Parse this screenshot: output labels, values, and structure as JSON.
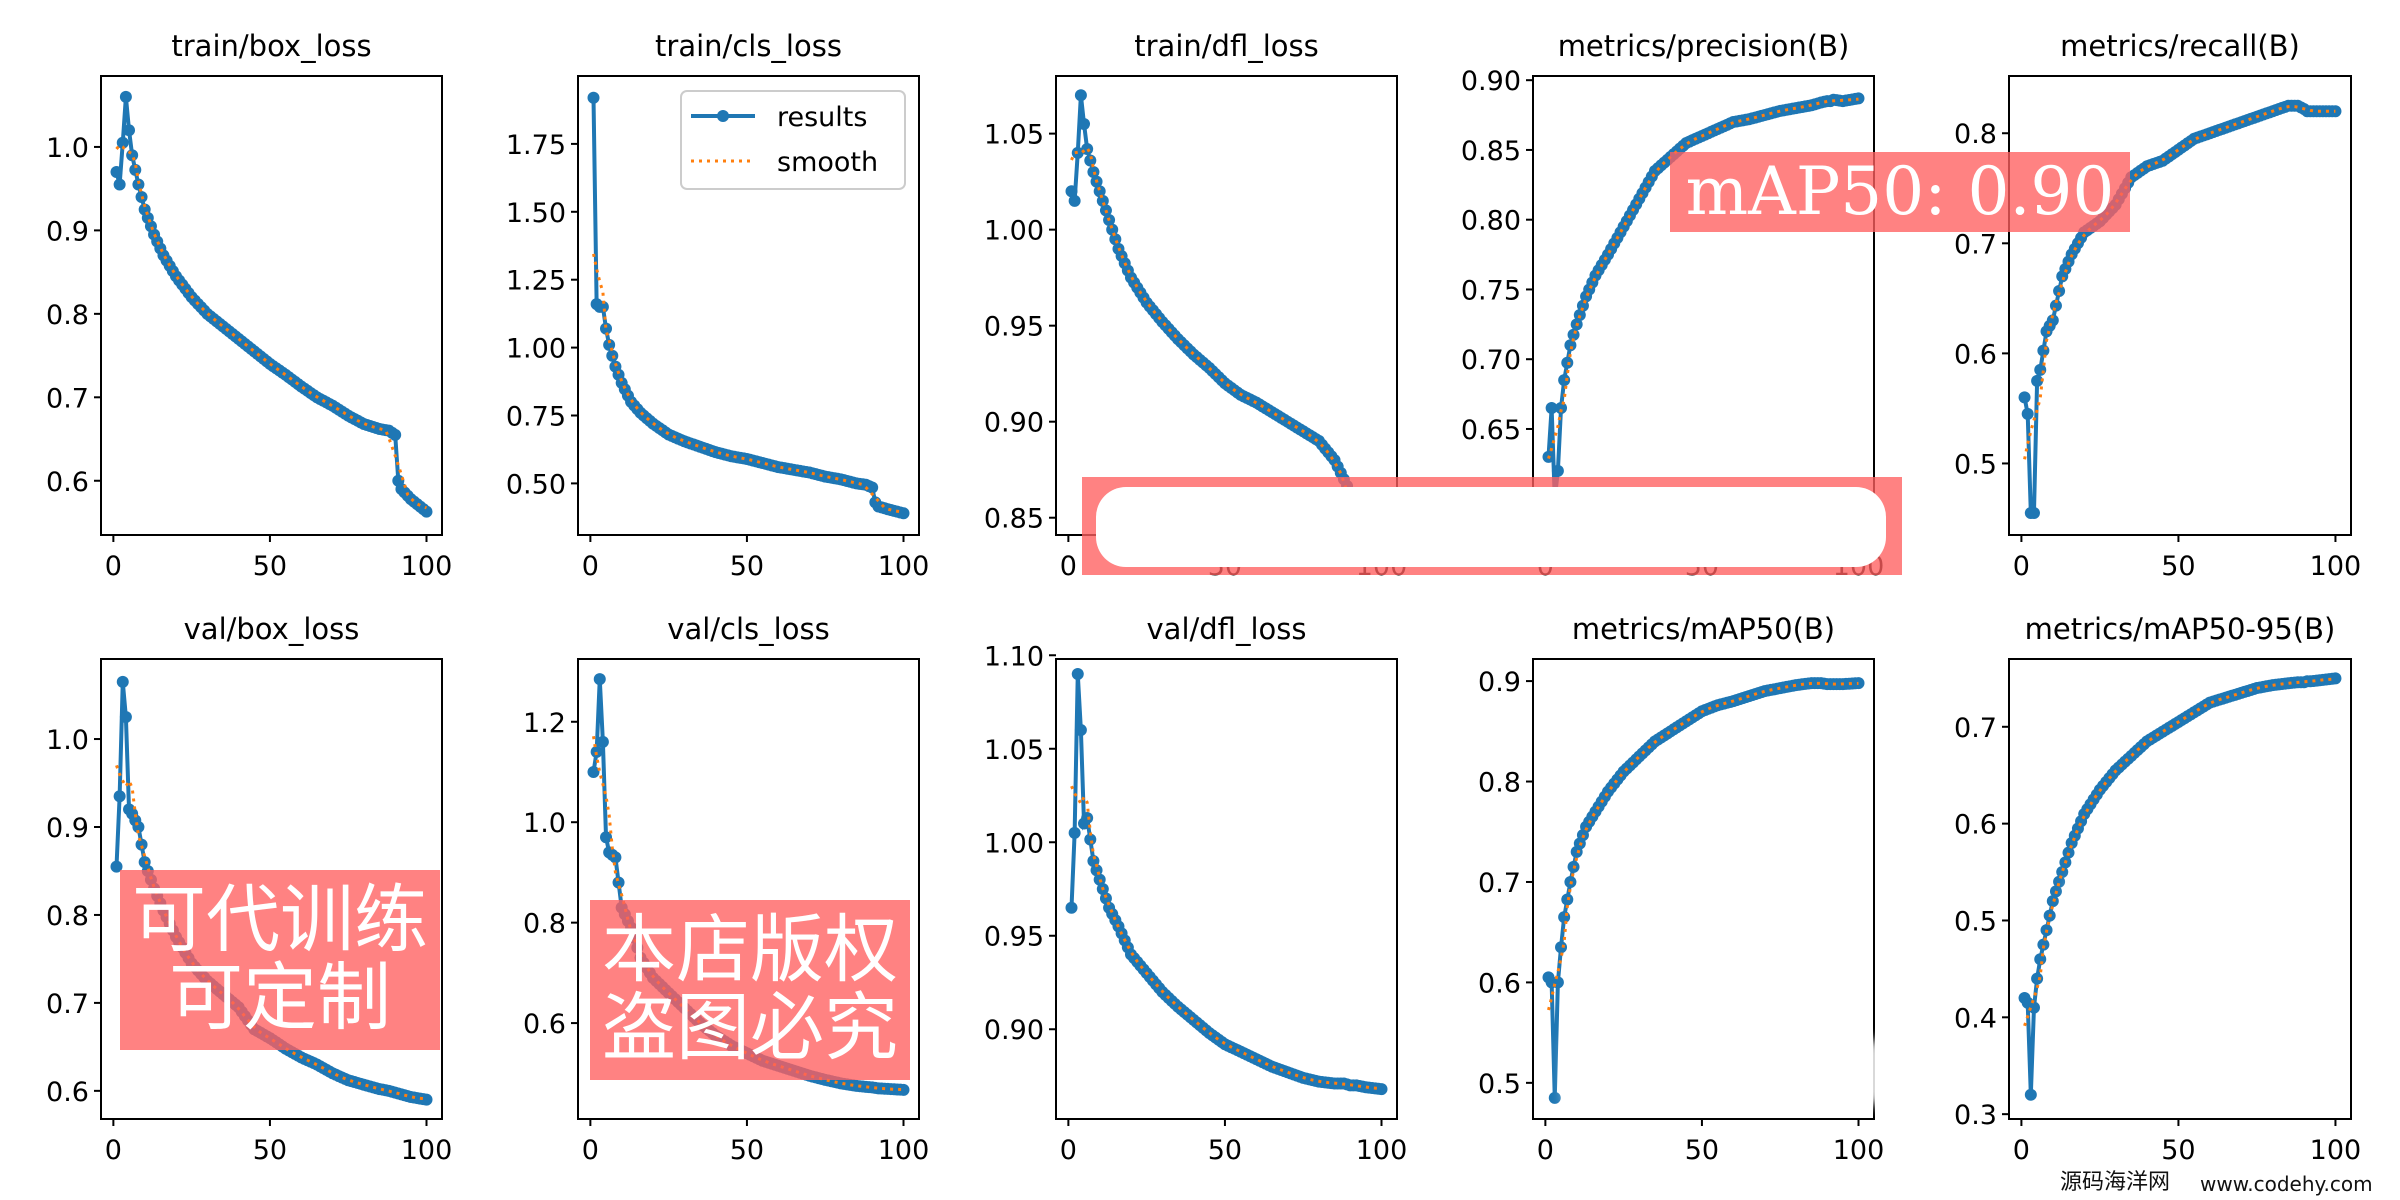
{
  "chart_data": [
    {
      "type": "line",
      "title": "train/box_loss",
      "xlim": [
        -3.95,
        104.95
      ],
      "ylim": [
        0.535,
        1.085
      ],
      "xticks": [
        "0",
        "50",
        "100"
      ],
      "yticks": [
        "0.6",
        "0.7",
        "0.8",
        "0.9",
        "1.0"
      ],
      "x": [
        1,
        2,
        3,
        4,
        5,
        6,
        8,
        10,
        13,
        16,
        20,
        25,
        30,
        35,
        40,
        45,
        50,
        55,
        60,
        65,
        70,
        75,
        80,
        85,
        88,
        90,
        91,
        92,
        95,
        100
      ],
      "results": [
        0.97,
        0.955,
        1.005,
        1.06,
        1.02,
        0.99,
        0.955,
        0.925,
        0.895,
        0.87,
        0.845,
        0.82,
        0.8,
        0.785,
        0.77,
        0.755,
        0.74,
        0.727,
        0.713,
        0.7,
        0.69,
        0.678,
        0.668,
        0.662,
        0.66,
        0.655,
        0.6,
        0.59,
        0.578,
        0.563
      ]
    },
    {
      "type": "line",
      "title": "train/cls_loss",
      "xlim": [
        -3.95,
        104.95
      ],
      "ylim": [
        0.31,
        2.0
      ],
      "xticks": [
        "0",
        "50",
        "100"
      ],
      "yticks": [
        "0.50",
        "0.75",
        "1.00",
        "1.25",
        "1.50",
        "1.75"
      ],
      "x": [
        1,
        2,
        3,
        4,
        5,
        6,
        8,
        10,
        13,
        16,
        20,
        25,
        30,
        35,
        40,
        45,
        50,
        55,
        60,
        65,
        70,
        75,
        80,
        85,
        88,
        90,
        91,
        92,
        95,
        100
      ],
      "results": [
        1.92,
        1.16,
        1.15,
        1.15,
        1.07,
        1.01,
        0.93,
        0.87,
        0.8,
        0.76,
        0.72,
        0.68,
        0.655,
        0.635,
        0.615,
        0.6,
        0.59,
        0.575,
        0.56,
        0.55,
        0.54,
        0.525,
        0.515,
        0.5,
        0.495,
        0.485,
        0.43,
        0.415,
        0.405,
        0.39
      ],
      "legend": {
        "placement": "top-right",
        "entries": [
          "results",
          "smooth"
        ]
      }
    },
    {
      "type": "line",
      "title": "train/dfl_loss",
      "xlim": [
        -3.95,
        104.95
      ],
      "ylim": [
        0.841,
        1.08
      ],
      "xticks": [
        "0",
        "50",
        "100"
      ],
      "yticks": [
        "0.85",
        "0.90",
        "0.95",
        "1.00",
        "1.05"
      ],
      "x": [
        1,
        2,
        3,
        4,
        5,
        6,
        8,
        10,
        13,
        16,
        20,
        25,
        30,
        35,
        40,
        45,
        50,
        55,
        60,
        65,
        70,
        75,
        80,
        85,
        88,
        90,
        91,
        92,
        95,
        100
      ],
      "results": [
        1.02,
        1.015,
        1.04,
        1.07,
        1.055,
        1.042,
        1.03,
        1.02,
        1.005,
        0.99,
        0.975,
        0.962,
        0.952,
        0.943,
        0.935,
        0.928,
        0.92,
        0.914,
        0.91,
        0.905,
        0.9,
        0.895,
        0.89,
        0.88,
        0.87,
        0.863,
        0.85,
        0.845,
        0.84,
        0.835
      ]
    },
    {
      "type": "line",
      "title": "metrics/precision(B)",
      "xlim": [
        -3.95,
        104.95
      ],
      "ylim": [
        0.574,
        0.903
      ],
      "xticks": [
        "0",
        "50",
        "100"
      ],
      "yticks": [
        "0.65",
        "0.70",
        "0.75",
        "0.80",
        "0.85",
        "0.90"
      ],
      "x": [
        1,
        2,
        3,
        4,
        5,
        6,
        8,
        10,
        13,
        16,
        20,
        25,
        30,
        35,
        40,
        45,
        50,
        55,
        60,
        65,
        70,
        75,
        80,
        85,
        88,
        90,
        91,
        92,
        95,
        100
      ],
      "results": [
        0.63,
        0.665,
        0.6,
        0.62,
        0.665,
        0.685,
        0.71,
        0.725,
        0.745,
        0.76,
        0.775,
        0.795,
        0.815,
        0.835,
        0.845,
        0.855,
        0.86,
        0.865,
        0.87,
        0.872,
        0.875,
        0.878,
        0.88,
        0.882,
        0.884,
        0.885,
        0.885,
        0.886,
        0.885,
        0.887
      ]
    },
    {
      "type": "line",
      "title": "metrics/recall(B)",
      "xlim": [
        -3.95,
        104.95
      ],
      "ylim": [
        0.435,
        0.852
      ],
      "xticks": [
        "0",
        "50",
        "100"
      ],
      "yticks": [
        "0.5",
        "0.6",
        "0.7",
        "0.8"
      ],
      "x": [
        1,
        2,
        3,
        4,
        5,
        6,
        8,
        10,
        13,
        16,
        20,
        25,
        30,
        35,
        40,
        45,
        50,
        55,
        60,
        65,
        70,
        75,
        80,
        85,
        88,
        90,
        91,
        92,
        95,
        100
      ],
      "results": [
        0.56,
        0.545,
        0.455,
        0.455,
        0.575,
        0.585,
        0.62,
        0.63,
        0.67,
        0.69,
        0.71,
        0.72,
        0.735,
        0.76,
        0.77,
        0.775,
        0.785,
        0.795,
        0.8,
        0.805,
        0.81,
        0.815,
        0.82,
        0.825,
        0.825,
        0.822,
        0.82,
        0.82,
        0.82,
        0.82
      ]
    },
    {
      "type": "line",
      "title": "val/box_loss",
      "xlim": [
        -3.95,
        104.95
      ],
      "ylim": [
        0.568,
        1.091
      ],
      "xticks": [
        "0",
        "50",
        "100"
      ],
      "yticks": [
        "0.6",
        "0.7",
        "0.8",
        "0.9",
        "1.0"
      ],
      "x": [
        1,
        2,
        3,
        4,
        5,
        6,
        8,
        10,
        13,
        16,
        20,
        25,
        30,
        35,
        40,
        45,
        50,
        55,
        60,
        65,
        70,
        75,
        80,
        85,
        88,
        90,
        91,
        92,
        95,
        100
      ],
      "results": [
        0.855,
        0.935,
        1.065,
        1.025,
        0.92,
        0.915,
        0.9,
        0.86,
        0.83,
        0.805,
        0.775,
        0.745,
        0.725,
        0.71,
        0.695,
        0.67,
        0.66,
        0.648,
        0.638,
        0.63,
        0.62,
        0.612,
        0.607,
        0.602,
        0.6,
        0.598,
        0.597,
        0.596,
        0.593,
        0.59
      ]
    },
    {
      "type": "line",
      "title": "val/cls_loss",
      "xlim": [
        -3.95,
        104.95
      ],
      "ylim": [
        0.409,
        1.325
      ],
      "xticks": [
        "0",
        "50",
        "100"
      ],
      "yticks": [
        "0.6",
        "0.8",
        "1.0",
        "1.2"
      ],
      "x": [
        1,
        2,
        3,
        4,
        5,
        6,
        8,
        10,
        13,
        16,
        20,
        25,
        30,
        35,
        40,
        45,
        50,
        55,
        60,
        65,
        70,
        75,
        80,
        85,
        88,
        90,
        91,
        92,
        95,
        100
      ],
      "results": [
        1.1,
        1.14,
        1.285,
        1.16,
        0.97,
        0.94,
        0.93,
        0.83,
        0.79,
        0.73,
        0.69,
        0.66,
        0.63,
        0.6,
        0.575,
        0.555,
        0.54,
        0.525,
        0.515,
        0.505,
        0.495,
        0.487,
        0.48,
        0.475,
        0.473,
        0.472,
        0.471,
        0.47,
        0.469,
        0.467
      ]
    },
    {
      "type": "line",
      "title": "val/dfl_loss",
      "xlim": [
        -3.95,
        104.95
      ],
      "ylim": [
        0.852,
        1.098
      ],
      "xticks": [
        "0",
        "50",
        "100"
      ],
      "yticks": [
        "0.90",
        "0.95",
        "1.00",
        "1.05",
        "1.10"
      ],
      "x": [
        1,
        2,
        3,
        4,
        5,
        6,
        8,
        10,
        13,
        16,
        20,
        25,
        30,
        35,
        40,
        45,
        50,
        55,
        60,
        65,
        70,
        75,
        80,
        85,
        88,
        90,
        91,
        92,
        95,
        100
      ],
      "results": [
        0.965,
        1.005,
        1.09,
        1.06,
        1.01,
        1.013,
        0.99,
        0.98,
        0.965,
        0.955,
        0.94,
        0.93,
        0.92,
        0.912,
        0.905,
        0.898,
        0.892,
        0.888,
        0.884,
        0.88,
        0.877,
        0.874,
        0.872,
        0.871,
        0.871,
        0.87,
        0.87,
        0.87,
        0.869,
        0.868
      ]
    },
    {
      "type": "line",
      "title": "metrics/mAP50(B)",
      "xlim": [
        -3.95,
        104.95
      ],
      "ylim": [
        0.464,
        0.922
      ],
      "xticks": [
        "0",
        "50",
        "100"
      ],
      "yticks": [
        "0.5",
        "0.6",
        "0.7",
        "0.8",
        "0.9"
      ],
      "x": [
        1,
        2,
        3,
        4,
        5,
        6,
        8,
        10,
        13,
        16,
        20,
        25,
        30,
        35,
        40,
        45,
        50,
        55,
        60,
        65,
        70,
        75,
        80,
        85,
        88,
        90,
        91,
        92,
        95,
        100
      ],
      "results": [
        0.605,
        0.6,
        0.485,
        0.6,
        0.635,
        0.665,
        0.7,
        0.73,
        0.755,
        0.77,
        0.79,
        0.81,
        0.825,
        0.84,
        0.85,
        0.86,
        0.87,
        0.876,
        0.88,
        0.885,
        0.89,
        0.893,
        0.896,
        0.898,
        0.898,
        0.897,
        0.897,
        0.897,
        0.897,
        0.898
      ]
    },
    {
      "type": "line",
      "title": "metrics/mAP50-95(B)",
      "xlim": [
        -3.95,
        104.95
      ],
      "ylim": [
        0.295,
        0.77
      ],
      "xticks": [
        "0",
        "50",
        "100"
      ],
      "yticks": [
        "0.3",
        "0.4",
        "0.5",
        "0.6",
        "0.7"
      ],
      "x": [
        1,
        2,
        3,
        4,
        5,
        6,
        8,
        10,
        13,
        16,
        20,
        25,
        30,
        35,
        40,
        45,
        50,
        55,
        60,
        65,
        70,
        75,
        80,
        85,
        88,
        90,
        91,
        92,
        95,
        100
      ],
      "results": [
        0.42,
        0.415,
        0.32,
        0.41,
        0.44,
        0.46,
        0.49,
        0.52,
        0.55,
        0.58,
        0.61,
        0.635,
        0.655,
        0.67,
        0.685,
        0.695,
        0.705,
        0.715,
        0.725,
        0.73,
        0.735,
        0.74,
        0.743,
        0.745,
        0.746,
        0.746,
        0.747,
        0.747,
        0.748,
        0.75
      ]
    }
  ],
  "colors": {
    "results": "#1f77b4",
    "smooth": "#ff7f0e",
    "watermark_bg": "#ff6b6b"
  },
  "watermarks": {
    "map_banner": "mAP50: 0.90",
    "training_banner": "可代训练可定制",
    "copyright_banner": "本店版权盗图必究"
  },
  "logo": {
    "name": "源码海洋网",
    "url": "www.codehy.com"
  }
}
